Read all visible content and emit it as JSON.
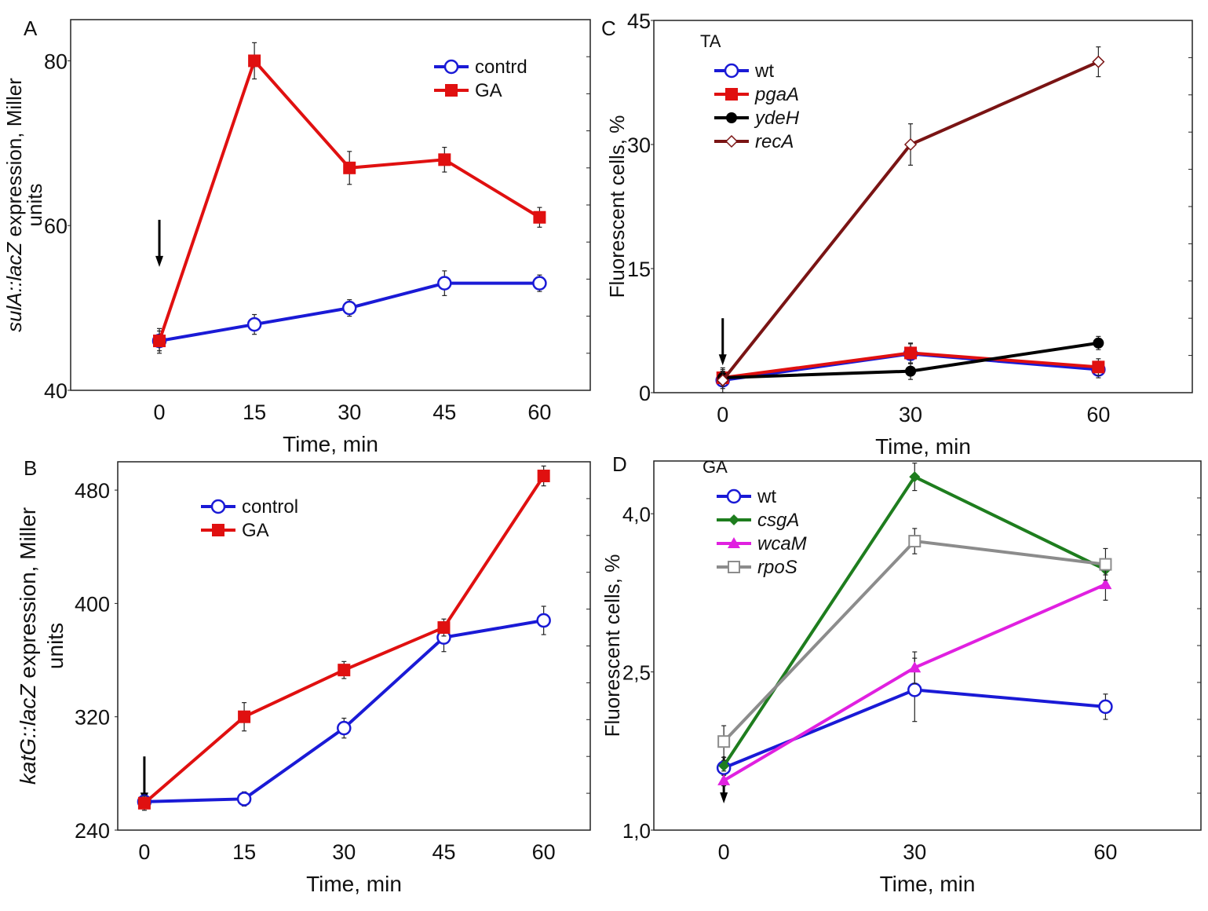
{
  "chart_data": [
    {
      "panel_label": "A",
      "type": "line",
      "xlabel": "Time, min",
      "ylabel_italic": "sulA::lacZ",
      "ylabel_rest": " expression, Miller",
      "ylabel_line2": "units",
      "x": [
        0,
        15,
        30,
        45,
        60
      ],
      "xticks": [
        "0",
        "15",
        "30",
        "45",
        "60"
      ],
      "xlim": [
        -14,
        68
      ],
      "ylim": [
        40,
        85
      ],
      "yticks": [
        "40",
        "60",
        "80"
      ],
      "ytick_values": [
        40,
        60,
        80
      ],
      "arrow_at_x": 0,
      "legend_placement": "top-right",
      "series": [
        {
          "name": "contrd",
          "italic": false,
          "color": "#1a1ad6",
          "marker": "open-circle",
          "values": [
            46,
            48,
            50,
            53,
            53
          ],
          "errors": [
            1.2,
            1.2,
            1.0,
            1.5,
            1.0
          ]
        },
        {
          "name": "GA",
          "italic": false,
          "color": "#e01010",
          "marker": "square",
          "values": [
            46,
            80,
            67,
            68,
            61
          ],
          "errors": [
            1.5,
            2.2,
            2.0,
            1.5,
            1.2
          ]
        }
      ]
    },
    {
      "panel_label": "B",
      "type": "line",
      "xlabel": "Time, min",
      "ylabel_italic": "katG::lacZ",
      "ylabel_rest": " expression, Miller",
      "ylabel_line2": "units",
      "x": [
        0,
        15,
        30,
        45,
        60
      ],
      "xticks": [
        "0",
        "15",
        "30",
        "45",
        "60"
      ],
      "xlim": [
        -4,
        67
      ],
      "ylim": [
        240,
        500
      ],
      "yticks": [
        "240",
        "320",
        "400",
        "480"
      ],
      "ytick_values": [
        240,
        320,
        400,
        480
      ],
      "arrow_at_x": 0,
      "legend_placement": "top-left",
      "series": [
        {
          "name": "control",
          "italic": false,
          "color": "#1a1ad6",
          "marker": "open-circle",
          "values": [
            260,
            262,
            312,
            376,
            388
          ],
          "errors": [
            4,
            5,
            7,
            10,
            10
          ]
        },
        {
          "name": "GA",
          "italic": false,
          "color": "#e01010",
          "marker": "square",
          "values": [
            259,
            320,
            353,
            383,
            490
          ],
          "errors": [
            5,
            10,
            6,
            6,
            7
          ]
        }
      ]
    },
    {
      "panel_label": "C",
      "type": "line",
      "xlabel": "Time, min",
      "ylabel": "Fluorescent cells, %",
      "x": [
        0,
        30,
        60
      ],
      "xticks": [
        "0",
        "30",
        "60"
      ],
      "xlim": [
        -11,
        75
      ],
      "ylim": [
        0,
        45
      ],
      "yticks": [
        "0",
        "15",
        "30",
        "45"
      ],
      "ytick_values": [
        0,
        15,
        30,
        45
      ],
      "arrow_at_x": 0,
      "legend_title": "TA",
      "legend_placement": "top-left",
      "series": [
        {
          "name": "wt",
          "italic": false,
          "color": "#1a1ad6",
          "marker": "open-circle",
          "values": [
            1.5,
            4.7,
            2.8
          ],
          "errors": [
            1.5,
            1.2,
            1.0
          ]
        },
        {
          "name": "pgaA",
          "italic": true,
          "color": "#e01010",
          "marker": "square",
          "values": [
            1.8,
            4.8,
            3.1
          ],
          "errors": [
            1.0,
            1.2,
            1.0
          ]
        },
        {
          "name": "ydeH",
          "italic": true,
          "color": "#000000",
          "marker": "filled-circle",
          "values": [
            1.8,
            2.6,
            6.0
          ],
          "errors": [
            0.8,
            1.0,
            0.8
          ]
        },
        {
          "name": "recA",
          "italic": true,
          "color": "#7a1414",
          "marker": "open-diamond",
          "values": [
            1.5,
            30,
            40
          ],
          "errors": [
            1.0,
            2.5,
            1.8
          ]
        }
      ]
    },
    {
      "panel_label": "D",
      "type": "line",
      "xlabel": "Time, min",
      "ylabel": "Fluorescent cells, %",
      "x": [
        0,
        30,
        60
      ],
      "xticks": [
        "0",
        "30",
        "60"
      ],
      "xlim": [
        -11,
        75
      ],
      "ylim": [
        1.0,
        4.5
      ],
      "yticks": [
        "1,0",
        "2,5",
        "4,0"
      ],
      "ytick_values": [
        1.0,
        2.5,
        4.0
      ],
      "arrow_at_x": 0,
      "legend_title": "GA",
      "legend_placement": "top-left",
      "series": [
        {
          "name": "wt",
          "italic": false,
          "color": "#1a1ad6",
          "marker": "open-circle",
          "values": [
            1.59,
            2.33,
            2.17
          ],
          "errors": [
            0.1,
            0.3,
            0.12
          ]
        },
        {
          "name": "csgA",
          "italic": true,
          "color": "#1e7d1e",
          "marker": "filled-diamond",
          "values": [
            1.61,
            4.35,
            3.47
          ],
          "errors": [
            0.05,
            0.13,
            0.05
          ]
        },
        {
          "name": "wcaM",
          "italic": true,
          "color": "#e020e0",
          "marker": "triangle",
          "values": [
            1.47,
            2.54,
            3.33
          ],
          "errors": [
            0.05,
            0.15,
            0.15
          ]
        },
        {
          "name": "rpoS",
          "italic": true,
          "color": "#8c8c8c",
          "marker": "open-square",
          "values": [
            1.84,
            3.74,
            3.52
          ],
          "errors": [
            0.15,
            0.12,
            0.15
          ]
        }
      ]
    }
  ]
}
